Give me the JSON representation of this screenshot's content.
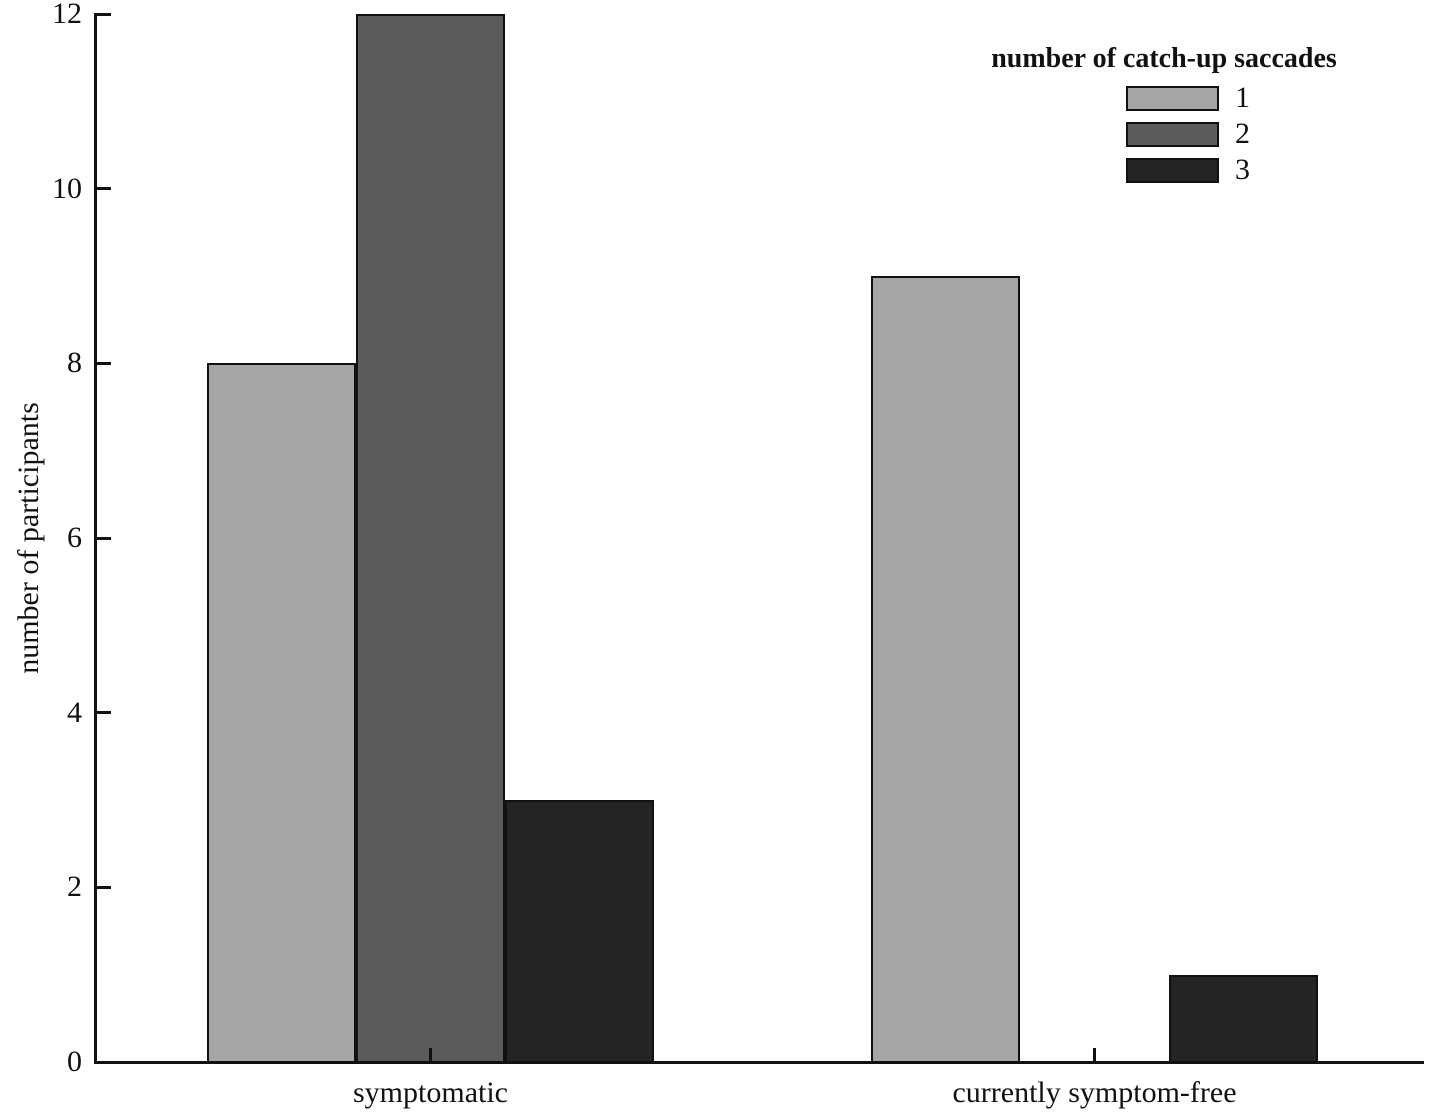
{
  "chart_data": {
    "type": "bar",
    "title": "",
    "xlabel": "",
    "ylabel": "number of participants",
    "ylim": [
      0,
      12
    ],
    "yticks": [
      0,
      2,
      4,
      6,
      8,
      10,
      12
    ],
    "grid": false,
    "categories": [
      "symptomatic",
      "currently symptom-free"
    ],
    "series": [
      {
        "name": "1",
        "color": "#a6a6a6",
        "values": [
          8,
          9
        ]
      },
      {
        "name": "2",
        "color": "#5b5b5b",
        "values": [
          12,
          0
        ]
      },
      {
        "name": "3",
        "color": "#242424",
        "values": [
          3,
          1
        ]
      }
    ],
    "legend": {
      "title": "number of catch-up saccades",
      "position": "top-right",
      "entries": [
        "1",
        "2",
        "3"
      ]
    },
    "colors": {
      "axis": "#111111",
      "bar_edge": "#111111",
      "background": "#ffffff"
    }
  }
}
